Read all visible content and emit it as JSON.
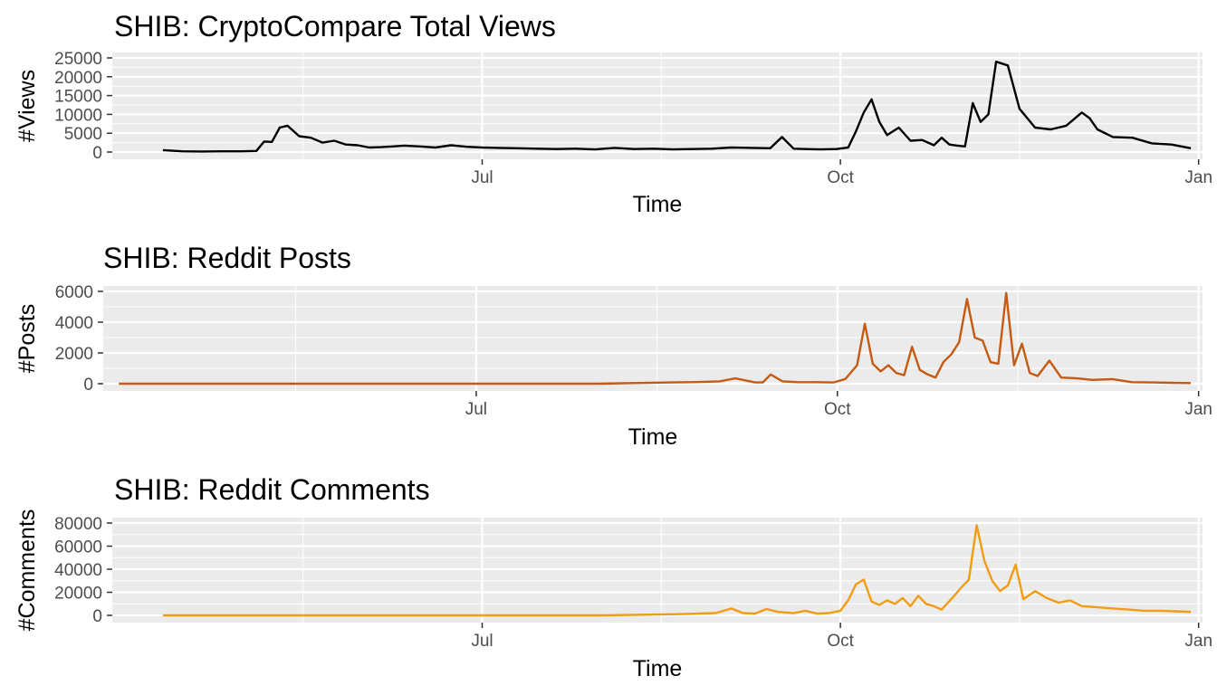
{
  "chart_data": [
    {
      "type": "line",
      "title": "SHIB: CryptoCompare Total Views",
      "xlabel": "Time",
      "ylabel": "#Views",
      "color": "#000000",
      "x_ticks": [
        "Jul",
        "Oct",
        "Jan"
      ],
      "y_ticks": [
        "0",
        "5000",
        "10000",
        "15000",
        "20000",
        "25000"
      ],
      "ylim": [
        0,
        25000
      ],
      "x_range": [
        "2021-03-28",
        "2022-01-02"
      ],
      "panel_background": "#ebebeb",
      "grid": true,
      "series": [
        {
          "x": [
            "2021-04-10",
            "2021-04-15",
            "2021-04-20",
            "2021-04-25",
            "2021-04-30",
            "2021-05-04",
            "2021-05-06",
            "2021-05-08",
            "2021-05-10",
            "2021-05-12",
            "2021-05-15",
            "2021-05-18",
            "2021-05-21",
            "2021-05-24",
            "2021-05-27",
            "2021-05-30",
            "2021-06-02",
            "2021-06-05",
            "2021-06-08",
            "2021-06-11",
            "2021-06-15",
            "2021-06-19",
            "2021-06-23",
            "2021-06-27",
            "2021-07-01",
            "2021-07-05",
            "2021-07-10",
            "2021-07-15",
            "2021-07-20",
            "2021-07-25",
            "2021-07-30",
            "2021-08-04",
            "2021-08-09",
            "2021-08-14",
            "2021-08-19",
            "2021-08-24",
            "2021-08-29",
            "2021-09-03",
            "2021-09-08",
            "2021-09-13",
            "2021-09-16",
            "2021-09-19",
            "2021-09-22",
            "2021-09-26",
            "2021-09-30",
            "2021-10-03",
            "2021-10-05",
            "2021-10-07",
            "2021-10-09",
            "2021-10-11",
            "2021-10-13",
            "2021-10-16",
            "2021-10-19",
            "2021-10-22",
            "2021-10-25",
            "2021-10-27",
            "2021-10-29",
            "2021-10-31",
            "2021-11-02",
            "2021-11-04",
            "2021-11-06",
            "2021-11-08",
            "2021-11-10",
            "2021-11-13",
            "2021-11-16",
            "2021-11-20",
            "2021-11-24",
            "2021-11-28",
            "2021-12-02",
            "2021-12-04",
            "2021-12-06",
            "2021-12-10",
            "2021-12-15",
            "2021-12-20",
            "2021-12-25",
            "2021-12-30"
          ],
          "y": [
            500,
            200,
            150,
            200,
            200,
            300,
            2800,
            2700,
            6500,
            7000,
            4200,
            3800,
            2500,
            3000,
            2000,
            1800,
            1200,
            1300,
            1500,
            1700,
            1500,
            1200,
            1800,
            1400,
            1200,
            1100,
            1000,
            900,
            800,
            900,
            700,
            1100,
            800,
            900,
            700,
            800,
            900,
            1200,
            1100,
            1000,
            4000,
            900,
            800,
            700,
            800,
            1200,
            5500,
            10500,
            14000,
            8000,
            4500,
            6500,
            3000,
            3200,
            1800,
            3800,
            2000,
            1700,
            1500,
            13000,
            8000,
            10000,
            24000,
            23000,
            11500,
            6500,
            6000,
            7000,
            10500,
            9000,
            6000,
            4000,
            3800,
            2300,
            2000,
            1000
          ]
        }
      ]
    },
    {
      "type": "line",
      "title": "SHIB: Reddit Posts",
      "xlabel": "Time",
      "ylabel": "#Posts",
      "color": "#c55a11",
      "x_ticks": [
        "Jul",
        "Oct",
        "Jan"
      ],
      "y_ticks": [
        "0",
        "2000",
        "4000",
        "6000"
      ],
      "ylim": [
        0,
        6000
      ],
      "x_range": [
        "2021-03-28",
        "2022-01-02"
      ],
      "panel_background": "#ebebeb",
      "grid": true,
      "series": [
        {
          "x": [
            "2021-04-01",
            "2021-06-01",
            "2021-08-01",
            "2021-08-20",
            "2021-08-25",
            "2021-09-01",
            "2021-09-05",
            "2021-09-10",
            "2021-09-12",
            "2021-09-14",
            "2021-09-17",
            "2021-09-21",
            "2021-09-25",
            "2021-09-30",
            "2021-10-03",
            "2021-10-06",
            "2021-10-08",
            "2021-10-10",
            "2021-10-12",
            "2021-10-14",
            "2021-10-16",
            "2021-10-18",
            "2021-10-20",
            "2021-10-22",
            "2021-10-24",
            "2021-10-26",
            "2021-10-28",
            "2021-10-30",
            "2021-11-01",
            "2021-11-03",
            "2021-11-05",
            "2021-11-07",
            "2021-11-09",
            "2021-11-11",
            "2021-11-13",
            "2021-11-15",
            "2021-11-17",
            "2021-11-19",
            "2021-11-21",
            "2021-11-24",
            "2021-11-27",
            "2021-12-01",
            "2021-12-05",
            "2021-12-10",
            "2021-12-15",
            "2021-12-20",
            "2021-12-25",
            "2021-12-30"
          ],
          "y": [
            0,
            0,
            0,
            80,
            100,
            150,
            350,
            80,
            80,
            600,
            150,
            100,
            100,
            80,
            300,
            1200,
            3900,
            1300,
            800,
            1200,
            700,
            550,
            2400,
            900,
            600,
            400,
            1400,
            1900,
            2700,
            5500,
            3000,
            2800,
            1400,
            1300,
            5900,
            1200,
            2600,
            700,
            500,
            1500,
            400,
            350,
            250,
            300,
            100,
            80,
            60,
            40
          ]
        }
      ]
    },
    {
      "type": "line",
      "title": "SHIB: Reddit Comments",
      "xlabel": "Time",
      "ylabel": "#Comments",
      "color": "#f39c12",
      "x_ticks": [
        "Jul",
        "Oct",
        "Jan"
      ],
      "y_ticks": [
        "0",
        "20000",
        "40000",
        "60000",
        "80000"
      ],
      "ylim": [
        0,
        80000
      ],
      "x_range": [
        "2021-03-28",
        "2022-01-02"
      ],
      "panel_background": "#ebebeb",
      "grid": true,
      "series": [
        {
          "x": [
            "2021-04-10",
            "2021-06-01",
            "2021-08-01",
            "2021-08-20",
            "2021-08-25",
            "2021-08-30",
            "2021-09-03",
            "2021-09-06",
            "2021-09-09",
            "2021-09-12",
            "2021-09-15",
            "2021-09-19",
            "2021-09-22",
            "2021-09-25",
            "2021-09-28",
            "2021-10-01",
            "2021-10-03",
            "2021-10-05",
            "2021-10-07",
            "2021-10-09",
            "2021-10-11",
            "2021-10-13",
            "2021-10-15",
            "2021-10-17",
            "2021-10-19",
            "2021-10-21",
            "2021-10-23",
            "2021-10-25",
            "2021-10-27",
            "2021-10-30",
            "2021-11-01",
            "2021-11-03",
            "2021-11-05",
            "2021-11-07",
            "2021-11-09",
            "2021-11-11",
            "2021-11-13",
            "2021-11-15",
            "2021-11-17",
            "2021-11-20",
            "2021-11-23",
            "2021-11-26",
            "2021-11-29",
            "2021-12-02",
            "2021-12-06",
            "2021-12-10",
            "2021-12-14",
            "2021-12-18",
            "2021-12-22",
            "2021-12-26",
            "2021-12-30"
          ],
          "y": [
            0,
            0,
            0,
            1000,
            1500,
            2000,
            6000,
            2000,
            1500,
            5500,
            3000,
            2000,
            4000,
            1500,
            2000,
            4000,
            13000,
            27000,
            31000,
            12000,
            9000,
            13000,
            10000,
            15000,
            8000,
            17000,
            10000,
            8000,
            5000,
            16000,
            24000,
            31000,
            78000,
            47000,
            30000,
            21000,
            26000,
            44000,
            14000,
            21000,
            15000,
            11000,
            13000,
            8000,
            7000,
            6000,
            5000,
            4000,
            4000,
            3500,
            3000
          ]
        }
      ]
    }
  ]
}
